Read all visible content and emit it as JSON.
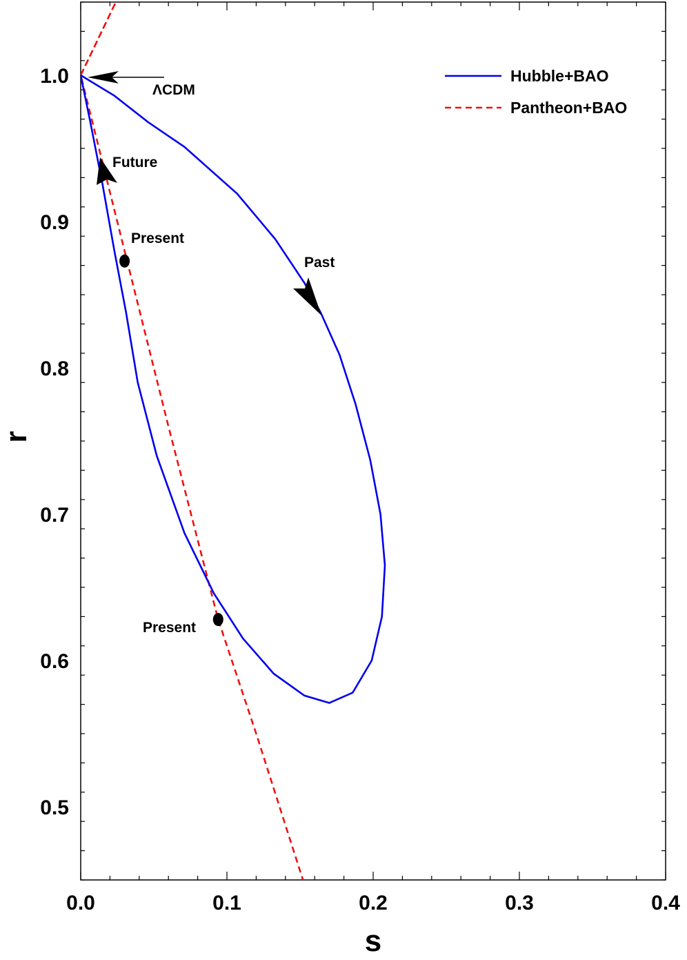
{
  "chart_data": {
    "type": "line",
    "xlabel": "s",
    "ylabel": "r",
    "xlim": [
      0.0,
      0.4
    ],
    "ylim": [
      0.45,
      1.05
    ],
    "x_ticks": [
      "0.0",
      "0.1",
      "0.2",
      "0.3",
      "0.4"
    ],
    "y_ticks": [
      "0.5",
      "0.6",
      "0.7",
      "0.8",
      "0.9",
      "1.0"
    ],
    "grid": false,
    "legend_position": "top-right",
    "series": [
      {
        "name": "Hubble+BAO",
        "color": "#0000ee",
        "style": "solid",
        "points": [
          [
            0.0,
            1.0
          ],
          [
            0.023,
            0.986
          ],
          [
            0.046,
            0.968
          ],
          [
            0.071,
            0.951
          ],
          [
            0.107,
            0.919
          ],
          [
            0.133,
            0.888
          ],
          [
            0.153,
            0.858
          ],
          [
            0.164,
            0.838
          ],
          [
            0.177,
            0.809
          ],
          [
            0.188,
            0.775
          ],
          [
            0.198,
            0.737
          ],
          [
            0.205,
            0.7
          ],
          [
            0.208,
            0.665
          ],
          [
            0.206,
            0.63
          ],
          [
            0.199,
            0.6
          ],
          [
            0.186,
            0.578
          ],
          [
            0.17,
            0.571
          ],
          [
            0.153,
            0.576
          ],
          [
            0.132,
            0.591
          ],
          [
            0.111,
            0.615
          ],
          [
            0.091,
            0.646
          ],
          [
            0.071,
            0.687
          ],
          [
            0.052,
            0.74
          ],
          [
            0.039,
            0.79
          ],
          [
            0.031,
            0.838
          ],
          [
            0.023,
            0.88
          ],
          [
            0.015,
            0.925
          ],
          [
            0.007,
            0.966
          ],
          [
            0.0,
            1.0
          ]
        ]
      },
      {
        "name": "Pantheon+BAO",
        "color": "#ee1111",
        "style": "dashed",
        "points": [
          [
            0.0,
            1.0
          ],
          [
            0.024,
            1.05
          ],
          [
            0.0,
            1.0
          ],
          [
            0.0,
            1.0
          ],
          [
            0.02,
            0.92
          ],
          [
            0.06,
            0.76
          ],
          [
            0.094,
            0.628
          ],
          [
            0.12,
            0.55
          ],
          [
            0.152,
            0.45
          ]
        ]
      }
    ],
    "markers": [
      {
        "label": "Present",
        "x": 0.03,
        "y": 0.873
      },
      {
        "label": "Present",
        "x": 0.094,
        "y": 0.628
      }
    ],
    "annotations": {
      "lcdm": "ΛCDM",
      "future": "Future",
      "past": "Past",
      "present_upper": "Present",
      "present_lower": "Present"
    }
  }
}
